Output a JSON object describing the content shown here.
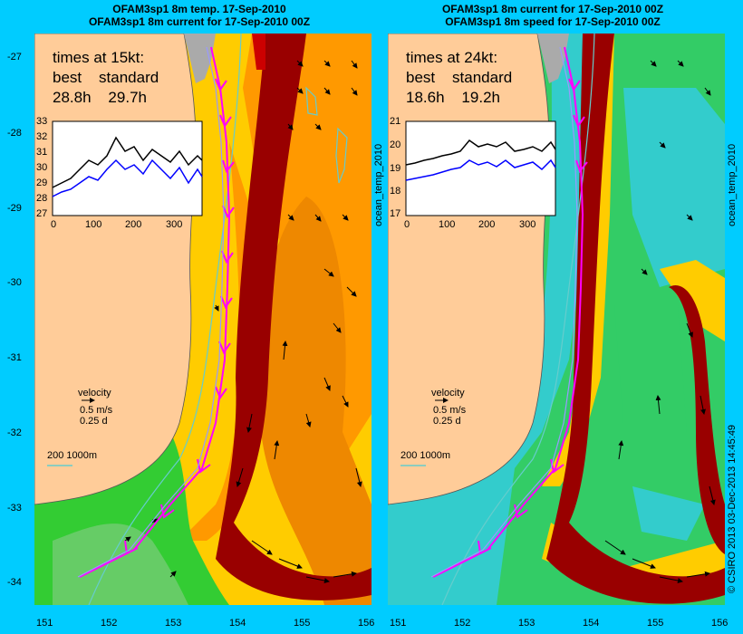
{
  "left_panel": {
    "title_line1": "OFAM3sp1 8m temp. 17-Sep-2010",
    "title_line2": "OFAM3sp1 8m current for 17-Sep-2010 00Z",
    "header": "times at 15kt:",
    "labels": "best    standard",
    "times": "28.8h    29.7h",
    "side_label": "ocean_temp_2010",
    "inset_yticks": [
      "33",
      "32",
      "31",
      "30",
      "29",
      "28",
      "27"
    ],
    "inset_xticks": [
      "0",
      "100",
      "200",
      "300"
    ]
  },
  "right_panel": {
    "title_line1": "OFAM3sp1 8m current for 17-Sep-2010 00Z",
    "title_line2": "OFAM3sp1 8m speed for 17-Sep-2010 00Z",
    "header": "times at 24kt:",
    "labels": "best    standard",
    "times": "18.6h    19.2h",
    "side_label": "ocean_temp_2010",
    "inset_yticks": [
      "21",
      "20",
      "19",
      "18",
      "17"
    ],
    "inset_xticks": [
      "0",
      "100",
      "200",
      "300"
    ]
  },
  "y_ticks": [
    "-27",
    "-28",
    "-29",
    "-30",
    "-31",
    "-32",
    "-33",
    "-34"
  ],
  "x_ticks": [
    "151",
    "152",
    "153",
    "154",
    "155",
    "156"
  ],
  "velocity_legend": {
    "title": "velocity",
    "speed": "0.5 m/s",
    "time": "0.25 d"
  },
  "depth_legend": "200  1000m",
  "credit": "© CSIRO 2013   03-Dec-2013 14:45:49",
  "colors": {
    "background": "#00ccff",
    "land": "#ffcc99",
    "best_route": "#ff00ff",
    "standard_route": "#9999ff"
  }
}
